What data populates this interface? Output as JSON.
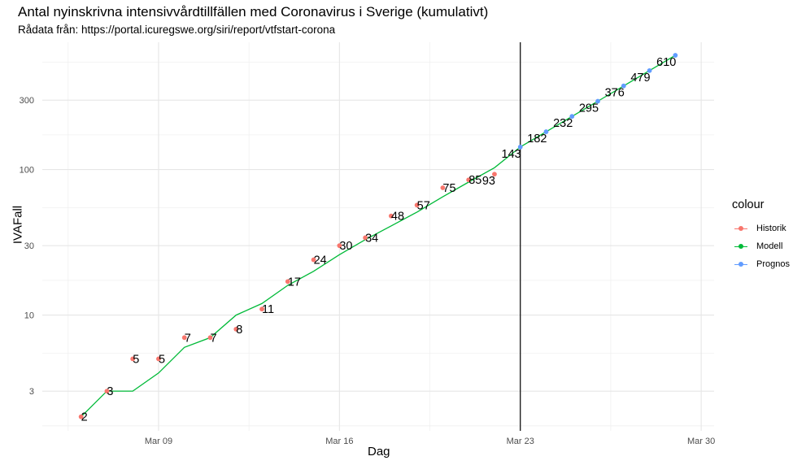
{
  "chart_data": {
    "type": "line",
    "title": "Antal nyinskrivna intensivvårdtillfällen med Coronavirus i Sverige (kumulativt)",
    "subtitle": "Rådata från: https://portal.icuregswe.org/siri/report/vtfstart-corona",
    "xlabel": "Dag",
    "ylabel": "IVAFall",
    "y_scale": "log10",
    "x_ticks": [
      "Mar 09",
      "Mar 16",
      "Mar 23",
      "Mar 30"
    ],
    "y_ticks": [
      3,
      10,
      30,
      100,
      300
    ],
    "xlim": [
      "2020-03-04T12:00",
      "2020-03-30T12:00"
    ],
    "ylim": [
      1.6,
      750
    ],
    "vline": "2020-03-23",
    "legend_title": "colour",
    "legend_position": "right",
    "series": [
      {
        "name": "Historik",
        "color": "#F8766D",
        "mode": "points",
        "x": [
          "2020-03-06",
          "2020-03-07",
          "2020-03-08",
          "2020-03-09",
          "2020-03-10",
          "2020-03-11",
          "2020-03-12",
          "2020-03-13",
          "2020-03-14",
          "2020-03-15",
          "2020-03-16",
          "2020-03-17",
          "2020-03-18",
          "2020-03-19",
          "2020-03-20",
          "2020-03-21",
          "2020-03-22"
        ],
        "y": [
          2,
          3,
          5,
          5,
          7,
          7,
          8,
          11,
          17,
          24,
          30,
          34,
          48,
          57,
          75,
          85,
          93
        ]
      },
      {
        "name": "Modell",
        "color": "#00BA38",
        "mode": "line",
        "x": [
          "2020-03-06",
          "2020-03-07",
          "2020-03-08",
          "2020-03-09",
          "2020-03-10",
          "2020-03-11",
          "2020-03-12",
          "2020-03-13",
          "2020-03-14",
          "2020-03-15",
          "2020-03-16",
          "2020-03-17",
          "2020-03-18",
          "2020-03-19",
          "2020-03-20",
          "2020-03-21",
          "2020-03-22",
          "2020-03-23",
          "2020-03-24",
          "2020-03-25",
          "2020-03-26",
          "2020-03-27",
          "2020-03-28",
          "2020-03-29"
        ],
        "y": [
          2,
          3,
          3,
          4,
          6,
          7,
          10,
          12,
          16,
          20,
          26,
          33,
          41,
          51,
          65,
          82,
          103,
          143,
          182,
          232,
          295,
          376,
          479,
          610
        ]
      },
      {
        "name": "Prognos",
        "color": "#619CFF",
        "mode": "points",
        "x": [
          "2020-03-23",
          "2020-03-24",
          "2020-03-25",
          "2020-03-26",
          "2020-03-27",
          "2020-03-28",
          "2020-03-29"
        ],
        "y": [
          143,
          182,
          232,
          295,
          376,
          479,
          610
        ]
      }
    ],
    "annotations": [
      {
        "x": "2020-03-06",
        "y": 2,
        "label": "2"
      },
      {
        "x": "2020-03-07",
        "y": 3,
        "label": "3"
      },
      {
        "x": "2020-03-08",
        "y": 5,
        "label": "5"
      },
      {
        "x": "2020-03-09",
        "y": 5,
        "label": "5"
      },
      {
        "x": "2020-03-10",
        "y": 7,
        "label": "7"
      },
      {
        "x": "2020-03-11",
        "y": 7,
        "label": "7"
      },
      {
        "x": "2020-03-12",
        "y": 8,
        "label": "8"
      },
      {
        "x": "2020-03-13",
        "y": 11,
        "label": "11"
      },
      {
        "x": "2020-03-14",
        "y": 17,
        "label": "17"
      },
      {
        "x": "2020-03-15",
        "y": 24,
        "label": "24"
      },
      {
        "x": "2020-03-16",
        "y": 30,
        "label": "30"
      },
      {
        "x": "2020-03-17",
        "y": 34,
        "label": "34"
      },
      {
        "x": "2020-03-18",
        "y": 48,
        "label": "48"
      },
      {
        "x": "2020-03-19",
        "y": 57,
        "label": "57"
      },
      {
        "x": "2020-03-20",
        "y": 75,
        "label": "75"
      },
      {
        "x": "2020-03-21",
        "y": 85,
        "label": "85"
      },
      {
        "x": "2020-03-22",
        "y": 93,
        "label": "93"
      },
      {
        "x": "2020-03-23",
        "y": 143,
        "label": "143"
      },
      {
        "x": "2020-03-24",
        "y": 182,
        "label": "182"
      },
      {
        "x": "2020-03-25",
        "y": 232,
        "label": "232"
      },
      {
        "x": "2020-03-26",
        "y": 295,
        "label": "295"
      },
      {
        "x": "2020-03-27",
        "y": 376,
        "label": "376"
      },
      {
        "x": "2020-03-28",
        "y": 479,
        "label": "479"
      },
      {
        "x": "2020-03-29",
        "y": 610,
        "label": "610"
      }
    ],
    "grid": true,
    "theme": "minimal"
  }
}
